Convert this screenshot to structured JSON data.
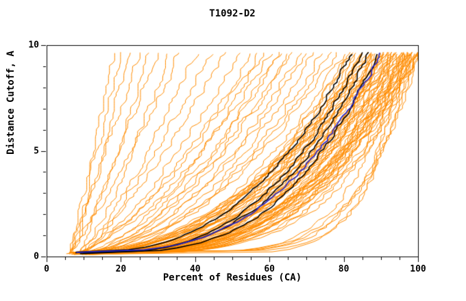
{
  "chart_data": {
    "type": "line",
    "title": "T1092-D2",
    "xlabel": "Percent of Residues (CA)",
    "ylabel": "Distance Cutoff, A",
    "xlim": [
      0,
      100
    ],
    "ylim": [
      0,
      10
    ],
    "x_major_ticks": [
      0,
      20,
      40,
      60,
      80,
      100
    ],
    "x_minor_step": 5,
    "y_major_ticks": [
      0,
      5,
      10
    ],
    "y_minor_step": 1,
    "grid": false,
    "legend": "none",
    "background": "#ffffff",
    "colors": {
      "axis": "#000000",
      "orange": "#ff8c00",
      "black": "#000000",
      "blue": "#2828cc"
    },
    "curve_model": "x(y) = x0 + (xmax - x0) * ((y - y_start)/(y_end - y_start))^shape",
    "y_start": 0.15,
    "y_end": 9.62,
    "series": {
      "orange_curves": [
        [
          6,
          18,
          0.95
        ],
        [
          7,
          22,
          0.9
        ],
        [
          6,
          25,
          1.0
        ],
        [
          8,
          27,
          0.85
        ],
        [
          7,
          30,
          0.95
        ],
        [
          9,
          33,
          0.8
        ],
        [
          6,
          36,
          0.9
        ],
        [
          8,
          40,
          0.75
        ],
        [
          10,
          44,
          0.85
        ],
        [
          7,
          20,
          1.05
        ],
        [
          9,
          48,
          0.8
        ],
        [
          8,
          52,
          0.7
        ],
        [
          7,
          55,
          0.65
        ],
        [
          9,
          58,
          0.6
        ],
        [
          6,
          60,
          0.62
        ],
        [
          8,
          62,
          0.55
        ],
        [
          10,
          65,
          0.6
        ],
        [
          7,
          68,
          0.5
        ],
        [
          9,
          70,
          0.55
        ],
        [
          8,
          72,
          0.5
        ],
        [
          11,
          74,
          0.52
        ],
        [
          6,
          76,
          0.48
        ],
        [
          9,
          78,
          0.5
        ],
        [
          10,
          66,
          0.58
        ],
        [
          8,
          57,
          0.68
        ],
        [
          7,
          63,
          0.6
        ],
        [
          8,
          80,
          0.45
        ],
        [
          9,
          81,
          0.42
        ],
        [
          7,
          82,
          0.4
        ],
        [
          10,
          82,
          0.46
        ],
        [
          8,
          83,
          0.38
        ],
        [
          9,
          84,
          0.44
        ],
        [
          6,
          84,
          0.36
        ],
        [
          10,
          85,
          0.4
        ],
        [
          8,
          85,
          0.35
        ],
        [
          9,
          86,
          0.42
        ],
        [
          7,
          86,
          0.33
        ],
        [
          11,
          87,
          0.38
        ],
        [
          8,
          87,
          0.3
        ],
        [
          9,
          88,
          0.4
        ],
        [
          10,
          88,
          0.34
        ],
        [
          7,
          89,
          0.37
        ],
        [
          8,
          89,
          0.3
        ],
        [
          9,
          90,
          0.35
        ],
        [
          11,
          90,
          0.28
        ],
        [
          8,
          91,
          0.33
        ],
        [
          10,
          91,
          0.38
        ],
        [
          7,
          92,
          0.3
        ],
        [
          9,
          92,
          0.35
        ],
        [
          8,
          93,
          0.28
        ],
        [
          10,
          93,
          0.33
        ],
        [
          9,
          94,
          0.3
        ],
        [
          7,
          94,
          0.36
        ],
        [
          11,
          95,
          0.27
        ],
        [
          8,
          95,
          0.32
        ],
        [
          9,
          96,
          0.29
        ],
        [
          10,
          96,
          0.34
        ],
        [
          8,
          97,
          0.26
        ],
        [
          9,
          97,
          0.31
        ],
        [
          10,
          98,
          0.28
        ],
        [
          8,
          98,
          0.33
        ],
        [
          9,
          99,
          0.25
        ],
        [
          11,
          99,
          0.3
        ],
        [
          10,
          100,
          0.27
        ],
        [
          8,
          100,
          0.32
        ],
        [
          9,
          100,
          0.24
        ],
        [
          12,
          96,
          0.45
        ],
        [
          11,
          93,
          0.5
        ],
        [
          13,
          91,
          0.48
        ],
        [
          12,
          88,
          0.52
        ],
        [
          14,
          95,
          0.4
        ],
        [
          10,
          90,
          0.55
        ],
        [
          12,
          98,
          0.42
        ],
        [
          9,
          87,
          0.5
        ],
        [
          13,
          97,
          0.35
        ],
        [
          11,
          85,
          0.47
        ],
        [
          12,
          94,
          0.38
        ],
        [
          10,
          99,
          0.36
        ],
        [
          14,
          92,
          0.44
        ],
        [
          11,
          96,
          0.32
        ],
        [
          13,
          99,
          0.38
        ],
        [
          12,
          100,
          0.3
        ],
        [
          10,
          94,
          0.46
        ],
        [
          9,
          91,
          0.52
        ],
        [
          13,
          93,
          0.41
        ],
        [
          11,
          98,
          0.34
        ],
        [
          12,
          90,
          0.49
        ],
        [
          10,
          97,
          0.3
        ],
        [
          14,
          99,
          0.32
        ],
        [
          11,
          100,
          0.35
        ],
        [
          9,
          97,
          0.14
        ],
        [
          10,
          99,
          0.16
        ],
        [
          8,
          95,
          0.15
        ],
        [
          11,
          98,
          0.13
        ],
        [
          9,
          100,
          0.17
        ],
        [
          10,
          96,
          0.12
        ]
      ],
      "black_curves": [
        [
          8,
          82,
          0.38
        ],
        [
          9,
          85,
          0.35
        ],
        [
          8,
          87,
          0.33
        ],
        [
          10,
          89,
          0.31
        ]
      ],
      "blue_curve": [
        8,
        90,
        0.34
      ]
    }
  }
}
